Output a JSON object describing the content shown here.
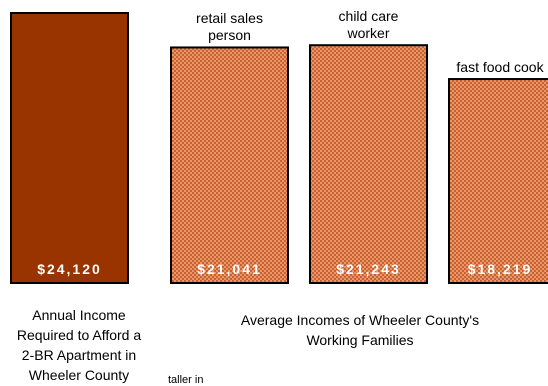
{
  "chart_data": {
    "type": "bar",
    "categories": [
      "",
      "retail sales person",
      "child care worker",
      "fast food cook"
    ],
    "values": [
      24120,
      21041,
      21243,
      18219
    ],
    "value_labels": [
      "$24,120",
      "$21,041",
      "$21,243",
      "$18,219"
    ],
    "bar_top_labels": [
      [],
      [
        "retail sales",
        "person"
      ],
      [
        "child care",
        "worker"
      ],
      [
        "fast food cook"
      ]
    ],
    "colors": {
      "required_bar": "#993300",
      "occupation_bar": "#e8966a",
      "occupation_pattern": "#c9622e",
      "outline": "#000000"
    },
    "grid": false,
    "legend": "none"
  },
  "captions": {
    "required": [
      "Annual Income",
      "Required to Afford a",
      "2-BR Apartment in",
      "Wheeler County"
    ],
    "occupations": [
      "Average Incomes of Wheeler County's",
      "Working Families"
    ]
  },
  "footnote": "taller in"
}
